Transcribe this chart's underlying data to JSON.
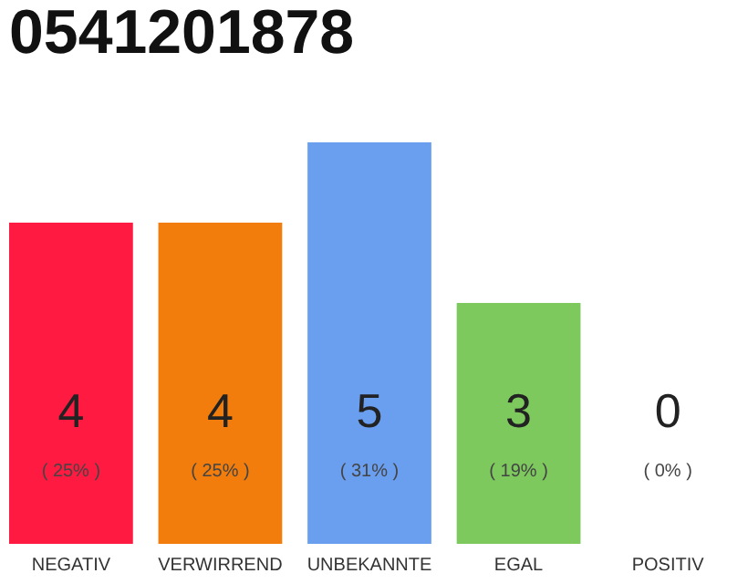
{
  "chart_data": {
    "type": "bar",
    "title": "0541201878",
    "categories": [
      "NEGATIV",
      "VERWIRREND",
      "UNBEKANNTE",
      "EGAL",
      "POSITIV"
    ],
    "values": [
      4,
      4,
      5,
      3,
      0
    ],
    "colors": [
      "#fe1a40",
      "#f27d0c",
      "#6a9ff0",
      "#7dc95e",
      "#bdbdbd"
    ],
    "tick_labels": "x",
    "data_labels": true,
    "annotations": [
      "( 25% )",
      "( 25% )",
      "( 31% )",
      "( 19% )",
      "( 0% )"
    ]
  }
}
